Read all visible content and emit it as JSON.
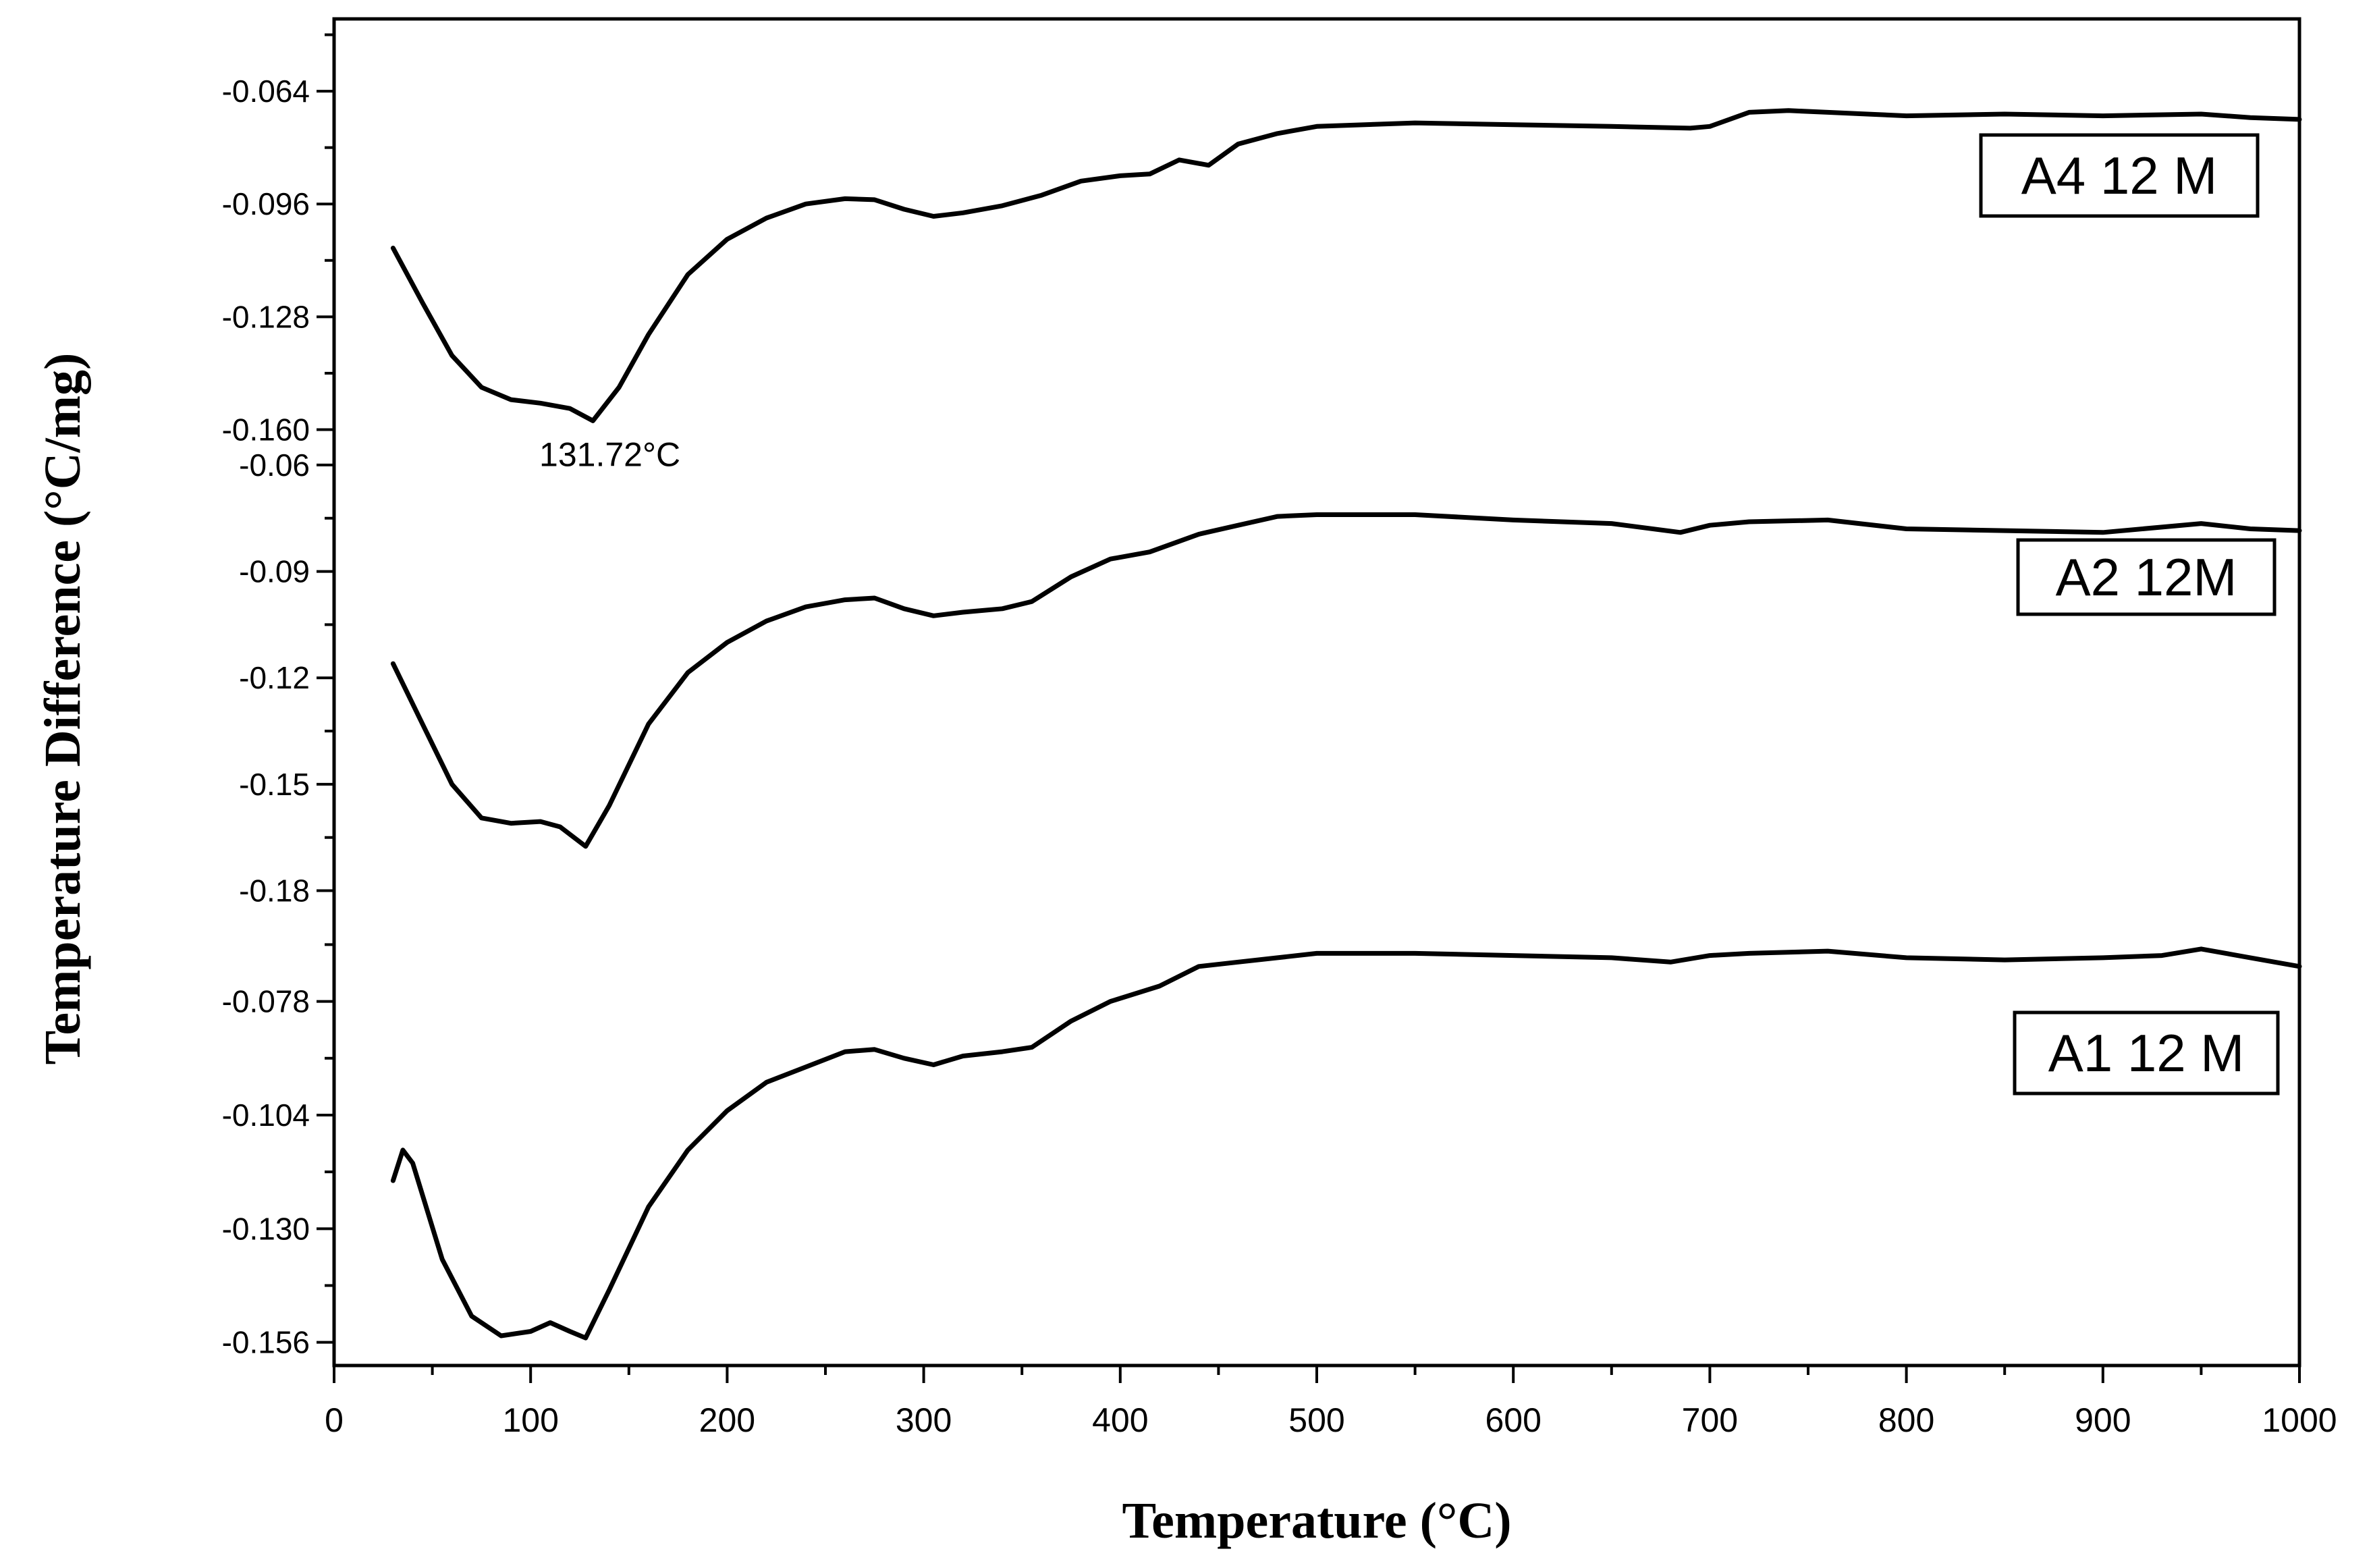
{
  "chart_data": {
    "type": "line",
    "xlabel": "Temperature (°C)",
    "ylabel": "Temperature Difference (°C/mg)",
    "xlim": [
      0,
      1000
    ],
    "xticks": [
      0,
      100,
      200,
      300,
      400,
      500,
      600,
      700,
      800,
      900,
      1000
    ],
    "grid": false,
    "line_color": "#000000",
    "panels": [
      {
        "name": "A4 12 M",
        "yticks": [
          -0.064,
          -0.096,
          -0.128,
          -0.16
        ],
        "ytick_labels": [
          "-0.064",
          "-0.096",
          "-0.128",
          "-0.160"
        ],
        "ylim": [
          -0.1645,
          -0.0435
        ],
        "annotation": {
          "text": "131.72°C",
          "x": 131.72,
          "y": -0.1585
        },
        "series": {
          "x": [
            30,
            45,
            60,
            75,
            90,
            105,
            120,
            131.7,
            145,
            160,
            180,
            200,
            220,
            240,
            260,
            275,
            290,
            305,
            320,
            340,
            360,
            380,
            400,
            415,
            430,
            445,
            460,
            480,
            500,
            550,
            600,
            650,
            690,
            700,
            720,
            740,
            760,
            780,
            800,
            850,
            900,
            950,
            975,
            1000
          ],
          "y": [
            -0.1085,
            -0.124,
            -0.139,
            -0.148,
            -0.1515,
            -0.1525,
            -0.154,
            -0.1575,
            -0.148,
            -0.133,
            -0.116,
            -0.106,
            -0.1,
            -0.096,
            -0.0945,
            -0.0948,
            -0.0975,
            -0.0995,
            -0.0985,
            -0.0965,
            -0.0935,
            -0.0895,
            -0.088,
            -0.0875,
            -0.0835,
            -0.085,
            -0.079,
            -0.076,
            -0.074,
            -0.073,
            -0.0735,
            -0.074,
            -0.0745,
            -0.074,
            -0.07,
            -0.0695,
            -0.07,
            -0.0705,
            -0.071,
            -0.0705,
            -0.071,
            -0.0705,
            -0.0715,
            -0.072
          ]
        }
      },
      {
        "name": "A2 12M",
        "yticks": [
          -0.06,
          -0.09,
          -0.12,
          -0.15,
          -0.18
        ],
        "ytick_labels": [
          "-0.06",
          "-0.09",
          "-0.12",
          "-0.15",
          "-0.18"
        ],
        "ylim": [
          -0.1915,
          -0.0545
        ],
        "series": {
          "x": [
            30,
            45,
            60,
            75,
            90,
            105,
            115,
            128,
            140,
            160,
            180,
            200,
            220,
            240,
            260,
            275,
            290,
            305,
            320,
            340,
            355,
            375,
            395,
            415,
            440,
            460,
            480,
            500,
            550,
            600,
            650,
            685,
            700,
            720,
            760,
            800,
            850,
            900,
            950,
            975,
            1000
          ],
          "y": [
            -0.116,
            -0.133,
            -0.15,
            -0.1595,
            -0.161,
            -0.1605,
            -0.162,
            -0.1675,
            -0.156,
            -0.133,
            -0.1185,
            -0.11,
            -0.104,
            -0.1,
            -0.098,
            -0.0975,
            -0.1005,
            -0.1025,
            -0.1015,
            -0.1005,
            -0.0985,
            -0.0915,
            -0.0865,
            -0.0845,
            -0.0795,
            -0.077,
            -0.0745,
            -0.074,
            -0.074,
            -0.0755,
            -0.0765,
            -0.079,
            -0.077,
            -0.076,
            -0.0755,
            -0.078,
            -0.0785,
            -0.079,
            -0.0765,
            -0.078,
            -0.0785
          ]
        }
      },
      {
        "name": "A1 12 M",
        "yticks": [
          -0.078,
          -0.104,
          -0.13,
          -0.156
        ],
        "ytick_labels": [
          "-0.078",
          "-0.104",
          "-0.130",
          "-0.156"
        ],
        "ylim": [
          -0.1613,
          -0.062
        ],
        "series": {
          "x": [
            30,
            35,
            40,
            55,
            70,
            85,
            100,
            110,
            120,
            128,
            140,
            160,
            180,
            200,
            220,
            240,
            260,
            275,
            290,
            305,
            320,
            340,
            355,
            375,
            395,
            420,
            440,
            460,
            480,
            500,
            550,
            600,
            650,
            680,
            700,
            720,
            760,
            800,
            850,
            900,
            930,
            950,
            975,
            1000
          ],
          "y": [
            -0.119,
            -0.112,
            -0.115,
            -0.137,
            -0.15,
            -0.1545,
            -0.1535,
            -0.1515,
            -0.1535,
            -0.155,
            -0.144,
            -0.125,
            -0.112,
            -0.103,
            -0.0965,
            -0.093,
            -0.0895,
            -0.089,
            -0.091,
            -0.0925,
            -0.0905,
            -0.0895,
            -0.0885,
            -0.0825,
            -0.078,
            -0.0745,
            -0.07,
            -0.069,
            -0.068,
            -0.067,
            -0.067,
            -0.0675,
            -0.068,
            -0.069,
            -0.0675,
            -0.067,
            -0.0665,
            -0.068,
            -0.0685,
            -0.068,
            -0.0675,
            -0.066,
            -0.068,
            -0.07
          ]
        }
      }
    ]
  }
}
